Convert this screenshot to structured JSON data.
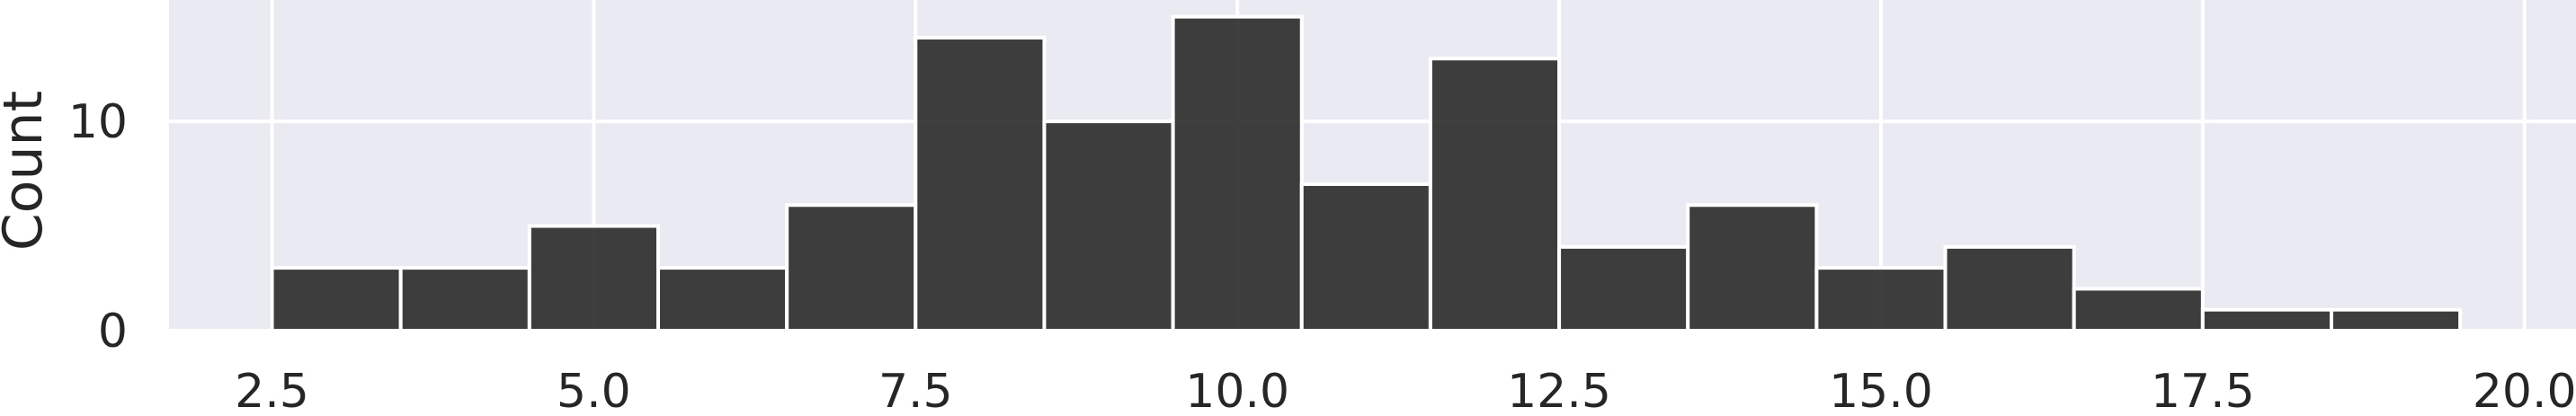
{
  "chart_data": {
    "type": "bar",
    "subtype": "histogram",
    "title": "",
    "xlabel": "",
    "ylabel": "Count",
    "bin_width": 1,
    "bins": [
      {
        "start": 2.5,
        "end": 3.5,
        "count": 3
      },
      {
        "start": 3.5,
        "end": 4.5,
        "count": 3
      },
      {
        "start": 4.5,
        "end": 5.5,
        "count": 5
      },
      {
        "start": 5.5,
        "end": 6.5,
        "count": 3
      },
      {
        "start": 6.5,
        "end": 7.5,
        "count": 6
      },
      {
        "start": 7.5,
        "end": 8.5,
        "count": 14
      },
      {
        "start": 8.5,
        "end": 9.5,
        "count": 10
      },
      {
        "start": 9.5,
        "end": 10.5,
        "count": 15
      },
      {
        "start": 10.5,
        "end": 11.5,
        "count": 7
      },
      {
        "start": 11.5,
        "end": 12.5,
        "count": 13
      },
      {
        "start": 12.5,
        "end": 13.5,
        "count": 4
      },
      {
        "start": 13.5,
        "end": 14.5,
        "count": 6
      },
      {
        "start": 14.5,
        "end": 15.5,
        "count": 3
      },
      {
        "start": 15.5,
        "end": 16.5,
        "count": 4
      },
      {
        "start": 16.5,
        "end": 17.5,
        "count": 2
      },
      {
        "start": 17.5,
        "end": 18.5,
        "count": 1
      },
      {
        "start": 18.5,
        "end": 19.5,
        "count": 1
      }
    ],
    "xticks": [
      2.5,
      5.0,
      7.5,
      10.0,
      12.5,
      15.0,
      17.5,
      20.0
    ],
    "xtick_labels": [
      "2.5",
      "5.0",
      "7.5",
      "10.0",
      "12.5",
      "15.0",
      "17.5",
      "20.0"
    ],
    "yticks": [
      0,
      10
    ],
    "ytick_labels": [
      "0",
      "10"
    ],
    "xlim": [
      1.7,
      20.4
    ],
    "ylim": [
      0,
      15.8
    ],
    "grid": true,
    "colors": {
      "background": "#eaeaf2",
      "grid": "#ffffff",
      "bar_fill": "#2a2a2a",
      "bar_edge": "#ffffff"
    }
  }
}
